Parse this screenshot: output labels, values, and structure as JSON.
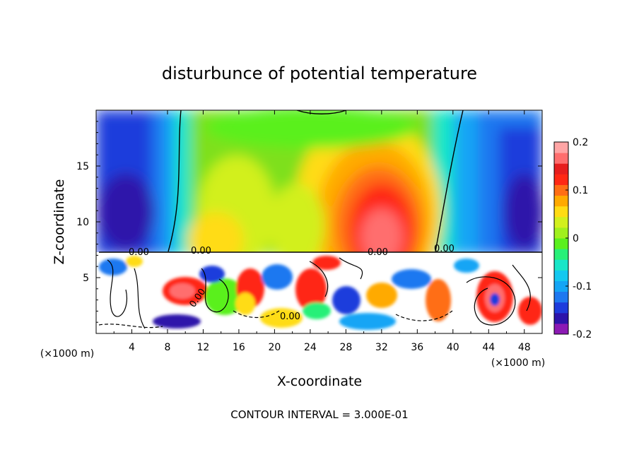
{
  "chart_data": {
    "type": "heatmap",
    "title": "disturbunce of potential temperature",
    "xlabel": "X-coordinate",
    "ylabel": "Z-coordinate",
    "x_unit": "(×1000 m)",
    "x_unit_right": "(×1000 m)",
    "xlim": [
      0,
      50
    ],
    "ylim": [
      0,
      20
    ],
    "x_ticks": [
      "4",
      "8",
      "12",
      "16",
      "20",
      "24",
      "28",
      "32",
      "36",
      "40",
      "44",
      "48"
    ],
    "y_ticks": [
      "5",
      "10",
      "15"
    ],
    "colorbar": {
      "min": -0.2,
      "max": 0.2,
      "tick_labels": [
        "0.2",
        "0.1",
        "0",
        "-0.1",
        "-0.2"
      ],
      "colors": [
        "#8c1ab4",
        "#2d14aa",
        "#1e3cdc",
        "#1e78f0",
        "#14a5f5",
        "#14c8f0",
        "#19e6c8",
        "#28f078",
        "#5af01e",
        "#a0f01e",
        "#d2f01e",
        "#ffdc14",
        "#ffaa00",
        "#ff6e14",
        "#ff2814",
        "#e61e1e",
        "#ff6e6e",
        "#ffa5a5"
      ]
    },
    "contour_labels": [
      "0.00",
      "0.00",
      "0.00",
      "0.00",
      "0.00",
      "0.00"
    ],
    "footer": "CONTOUR INTERVAL = 3.000E-01"
  }
}
